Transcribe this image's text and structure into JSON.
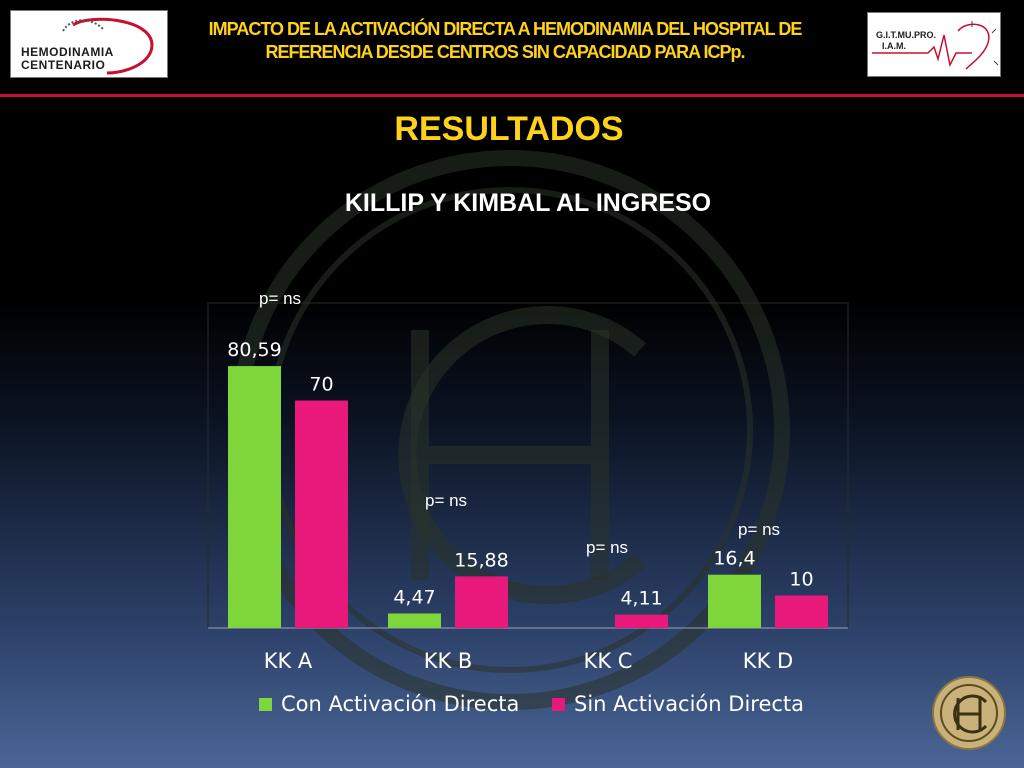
{
  "header": {
    "title_line1": "IMPACTO DE LA ACTIVACIÓN DIRECTA A HEMODINAMIA DEL HOSPITAL DE",
    "title_line2": "REFERENCIA DESDE CENTROS SIN CAPACIDAD PARA ICPp.",
    "logo_left_line1": "HEMODINAMIA",
    "logo_left_line2": "CENTENARIO",
    "logo_right_line1": "G.I.T.MU.PRO.",
    "logo_right_line2": "I.A.M."
  },
  "section_title": "RESULTADOS",
  "chart_data": {
    "type": "bar",
    "title": "KILLIP Y KIMBAL AL INGRESO",
    "categories": [
      "KK A",
      "KK B",
      "KK C",
      "KK D"
    ],
    "series": [
      {
        "name": "Con Activación Directa",
        "values": [
          80.59,
          4.47,
          null,
          16.4
        ],
        "labels": [
          "80,59",
          "4,47",
          "",
          "16,4"
        ],
        "color": "#7ed63b"
      },
      {
        "name": "Sin Activación Directa",
        "values": [
          70,
          15.88,
          4.11,
          10
        ],
        "labels": [
          "70",
          "15,88",
          "4,11",
          "10"
        ],
        "color": "#e8197a"
      }
    ],
    "ylim": [
      0,
      100
    ],
    "xlabel": "",
    "ylabel": "",
    "legend_position": "bottom",
    "annotations": [
      "p= ns",
      "p= ns",
      "p= ns",
      "p= ns"
    ]
  }
}
